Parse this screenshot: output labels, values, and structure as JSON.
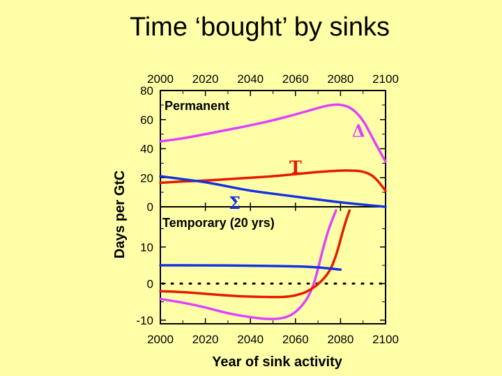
{
  "title": "Time ‘bought’ by sinks",
  "chart_data": {
    "type": "line",
    "xlabel": "Year of sink activity",
    "ylabel": "Days per GtC",
    "x_ticks": [
      "2000",
      "2020",
      "2040",
      "2060",
      "2080",
      "2100"
    ],
    "xlim": [
      2000,
      2100
    ],
    "panels": [
      {
        "label": "Permanent",
        "ylim": [
          0,
          80
        ],
        "y_ticks": [
          "80",
          "60",
          "40",
          "20",
          "0"
        ],
        "y_tick_values": [
          80,
          60,
          40,
          20,
          0
        ],
        "series": [
          {
            "name": "Δ",
            "color": "#e040ff",
            "x": [
              2000,
              2010,
              2020,
              2030,
              2040,
              2050,
              2060,
              2070,
              2075,
              2080,
              2085,
              2090,
              2095,
              2100
            ],
            "y": [
              45,
              47,
              50,
              53,
              56,
              59.5,
              63.5,
              68,
              70,
              70.5,
              68,
              60,
              45,
              31
            ]
          },
          {
            "name": "T",
            "color": "#e51b00",
            "x": [
              2000,
              2010,
              2020,
              2030,
              2040,
              2050,
              2060,
              2070,
              2080,
              2085,
              2090,
              2095,
              2100
            ],
            "y": [
              16.5,
              17.5,
              18,
              19,
              20,
              21,
              22.5,
              24,
              25,
              25,
              24.5,
              21,
              11
            ]
          },
          {
            "name": "Σ",
            "color": "#1432e0",
            "x": [
              2000,
              2010,
              2020,
              2030,
              2040,
              2050,
              2060,
              2070,
              2080,
              2090,
              2100
            ],
            "y": [
              21,
              19,
              17,
              14,
              11,
              9,
              7,
              5,
              3,
              1.5,
              0
            ]
          }
        ],
        "annotations": [
          {
            "text": "Δ",
            "color": "#e040ff",
            "x": 2088,
            "y": 52
          },
          {
            "text": "T",
            "color": "#e51b00",
            "x": 2060,
            "y": 27
          },
          {
            "text": "Σ",
            "color": "#1432e0",
            "x": 2033,
            "y": 2.5
          }
        ]
      },
      {
        "label": "Temporary (20 yrs)",
        "ylim": [
          -11,
          21
        ],
        "y_ticks": [
          "10",
          "0",
          "-10"
        ],
        "y_tick_values": [
          10,
          0,
          -10
        ],
        "dotted_zero": true,
        "series": [
          {
            "name": "magenta",
            "color": "#e040ff",
            "x": [
              2000,
              2010,
              2020,
              2030,
              2040,
              2048,
              2055,
              2060,
              2065,
              2068,
              2070,
              2072,
              2074,
              2076,
              2078
            ],
            "y": [
              -4.2,
              -5.2,
              -6.5,
              -8.2,
              -9.2,
              -9.8,
              -9.5,
              -8,
              -4.5,
              -0.5,
              4,
              9,
              13.5,
              17,
              20
            ]
          },
          {
            "name": "red",
            "color": "#e51b00",
            "x": [
              2000,
              2010,
              2020,
              2030,
              2040,
              2050,
              2055,
              2060,
              2065,
              2070,
              2075,
              2078,
              2080,
              2082,
              2084
            ],
            "y": [
              -2.1,
              -2.3,
              -2.8,
              -3.3,
              -3.6,
              -3.7,
              -3.7,
              -3.3,
              -2.3,
              -0.3,
              3,
              7.5,
              12,
              16.5,
              20
            ]
          },
          {
            "name": "blue",
            "color": "#1432e0",
            "x": [
              2000,
              2020,
              2040,
              2060,
              2070,
              2080
            ],
            "y": [
              5,
              5,
              4.9,
              4.7,
              4.5,
              3.8
            ]
          }
        ]
      }
    ]
  }
}
